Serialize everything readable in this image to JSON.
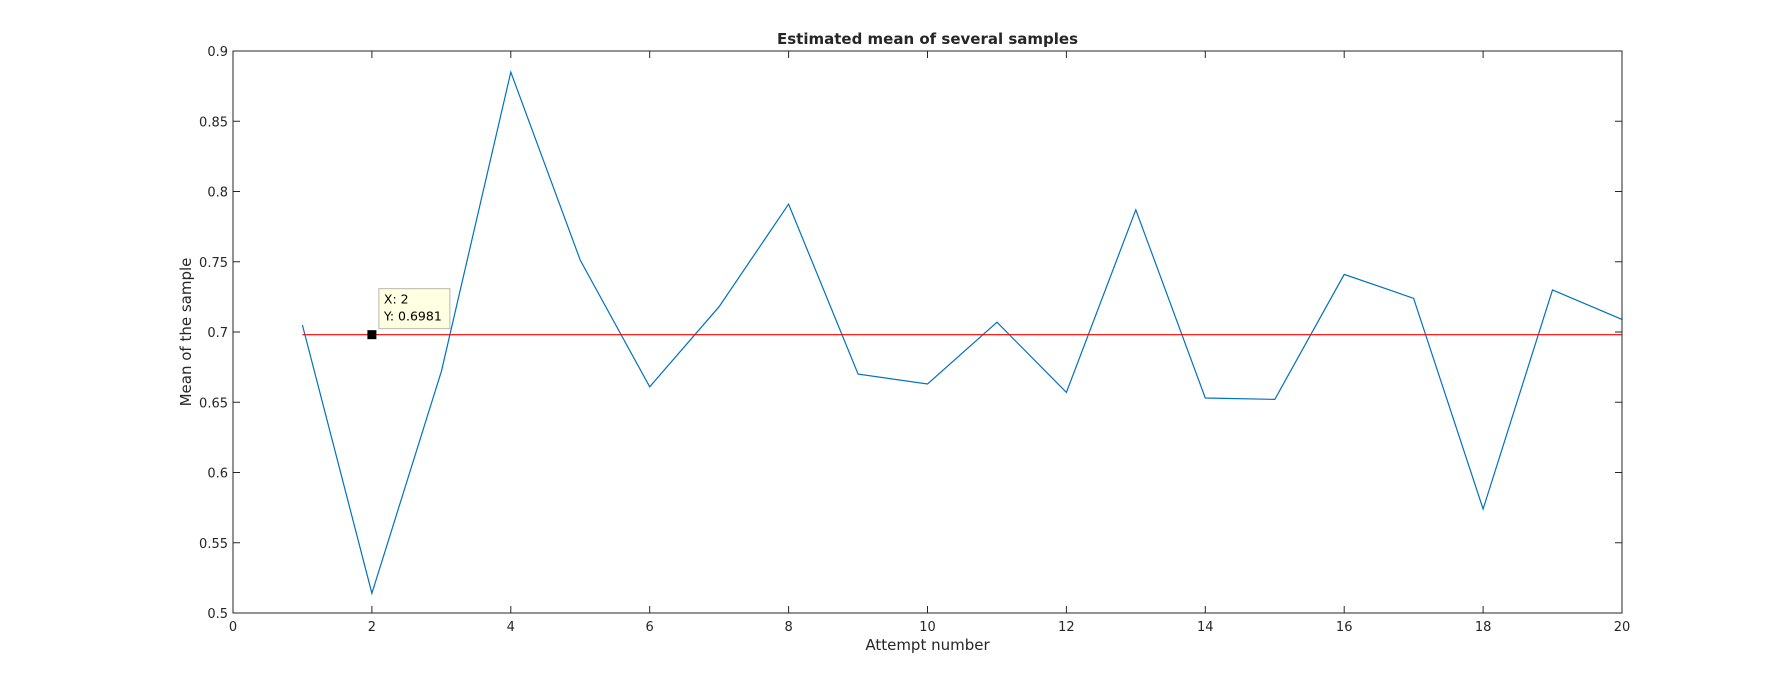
{
  "chart_data": {
    "type": "line",
    "title": "Estimated mean of several samples",
    "xlabel": "Attempt number",
    "ylabel": "Mean of the sample",
    "xlim": [
      0,
      20
    ],
    "ylim": [
      0.5,
      0.9
    ],
    "xticks": [
      0,
      2,
      4,
      6,
      8,
      10,
      12,
      14,
      16,
      18,
      20
    ],
    "yticks": [
      0.5,
      0.55,
      0.6,
      0.65,
      0.7,
      0.75,
      0.8,
      0.85,
      0.9
    ],
    "xtick_labels": [
      "0",
      "2",
      "4",
      "6",
      "8",
      "10",
      "12",
      "14",
      "16",
      "18",
      "20"
    ],
    "ytick_labels": [
      "0.5",
      "0.55",
      "0.6",
      "0.65",
      "0.7",
      "0.75",
      "0.8",
      "0.85",
      "0.9"
    ],
    "grid": false,
    "series": [
      {
        "color": "#0072BD",
        "x": [
          1,
          2,
          3,
          4,
          5,
          6,
          7,
          8,
          9,
          10,
          11,
          12,
          13,
          14,
          15,
          16,
          17,
          18,
          19,
          20
        ],
        "y": [
          0.705,
          0.514,
          0.672,
          0.885,
          0.751,
          0.661,
          0.718,
          0.791,
          0.67,
          0.663,
          0.707,
          0.657,
          0.787,
          0.653,
          0.652,
          0.741,
          0.724,
          0.574,
          0.73,
          0.709
        ]
      },
      {
        "color": "#FF0000",
        "x": [
          1,
          20
        ],
        "y": [
          0.6981,
          0.6981
        ]
      }
    ],
    "annotations": [
      {
        "type": "datatip",
        "x": 2,
        "y": 0.6981,
        "lines": [
          "X: 2",
          "Y: 0.6981"
        ]
      }
    ]
  }
}
